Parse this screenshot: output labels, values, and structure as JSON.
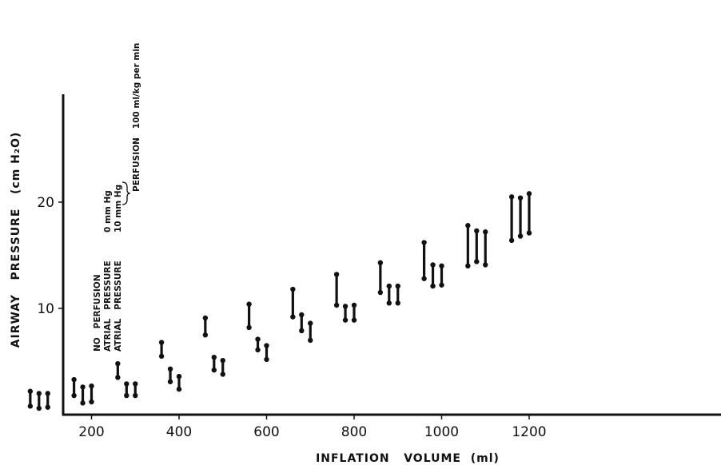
{
  "chart_data": {
    "type": "range",
    "xlabel": "INFLATION   VOLUME  (ml)",
    "ylabel": "AIRWAY   PRESSURE   (cm H₂O)",
    "xlim": [
      0,
      1230
    ],
    "ylim": [
      0,
      30
    ],
    "x_ticks": [
      200,
      400,
      600,
      800,
      1000,
      1200
    ],
    "y_ticks": [
      10,
      20
    ],
    "grid": false,
    "legend": {
      "placement": "left, vertical",
      "entries": [
        "NO   PERFUSION",
        "ATRIAL   PRESSURE",
        "ATRIAL   PRESSURE"
      ],
      "atrial_values": [
        "0 mm Hg",
        "10 mm Hg"
      ],
      "perfusion_note": "PERFUSION   100 ml/kg per min"
    },
    "series": [
      {
        "condition": "no perfusion",
        "x": [
          60,
          160,
          260,
          360,
          460,
          560,
          660,
          760,
          860,
          960,
          1060,
          1160
        ],
        "low": [
          0.8,
          1.8,
          3.5,
          5.5,
          7.5,
          8.2,
          9.2,
          10.3,
          11.5,
          12.8,
          14.0,
          16.4
        ],
        "high": [
          2.2,
          3.3,
          4.8,
          6.8,
          9.1,
          10.4,
          11.8,
          13.2,
          14.3,
          16.2,
          17.8,
          20.5
        ]
      },
      {
        "condition": "atrial pressure 0 mm Hg",
        "x": [
          80,
          180,
          280,
          380,
          480,
          580,
          680,
          780,
          880,
          980,
          1080,
          1180
        ],
        "low": [
          0.6,
          1.1,
          1.8,
          3.1,
          4.2,
          6.1,
          7.9,
          8.9,
          10.5,
          12.1,
          14.4,
          16.8
        ],
        "high": [
          2.0,
          2.6,
          2.9,
          4.3,
          5.4,
          7.1,
          9.4,
          10.2,
          12.1,
          14.1,
          17.3,
          20.4
        ]
      },
      {
        "condition": "atrial pressure 10 mm Hg",
        "x": [
          100,
          200,
          300,
          400,
          500,
          600,
          700,
          800,
          900,
          1000,
          1100,
          1200
        ],
        "low": [
          0.7,
          1.2,
          1.8,
          2.4,
          3.8,
          5.2,
          7.0,
          8.9,
          10.5,
          12.2,
          14.1,
          17.1
        ],
        "high": [
          2.0,
          2.7,
          2.9,
          3.6,
          5.1,
          6.5,
          8.6,
          10.3,
          12.1,
          14.0,
          17.2,
          20.8
        ]
      }
    ]
  }
}
